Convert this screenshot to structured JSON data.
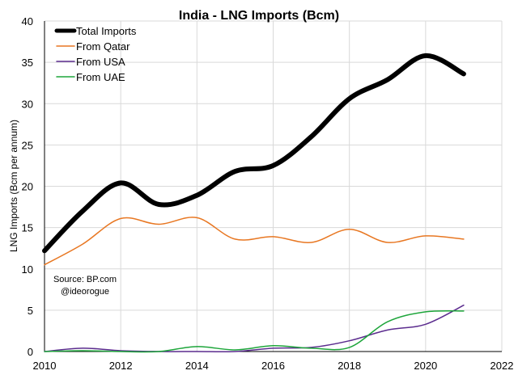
{
  "chart_data": {
    "type": "line",
    "title": "India - LNG Imports (Bcm)",
    "xlabel": "",
    "ylabel": "LNG Imports (Bcm per annum)",
    "xlim": [
      2010,
      2022
    ],
    "ylim": [
      0,
      40
    ],
    "x_ticks": [
      "2010",
      "2012",
      "2014",
      "2016",
      "2018",
      "2020",
      "2022"
    ],
    "y_ticks": [
      "0",
      "5",
      "10",
      "15",
      "20",
      "25",
      "30",
      "35",
      "40"
    ],
    "grid": true,
    "legend_position": "top-left",
    "x": [
      2010,
      2011,
      2012,
      2013,
      2014,
      2015,
      2016,
      2017,
      2018,
      2019,
      2020,
      2021
    ],
    "series": [
      {
        "name": "Total Imports",
        "color": "#000000",
        "values": [
          12.2,
          17.0,
          20.4,
          17.8,
          18.9,
          21.8,
          22.5,
          26.0,
          30.6,
          32.9,
          35.8,
          33.6
        ]
      },
      {
        "name": "From Qatar",
        "color": "#E87722",
        "values": [
          10.5,
          13.0,
          16.1,
          15.4,
          16.2,
          13.6,
          13.9,
          13.2,
          14.8,
          13.2,
          14.0,
          13.6
        ]
      },
      {
        "name": "From USA",
        "color": "#5B2C8E",
        "values": [
          0.0,
          0.4,
          0.1,
          0.0,
          0.0,
          0.0,
          0.4,
          0.5,
          1.3,
          2.6,
          3.3,
          5.6
        ]
      },
      {
        "name": "From UAE",
        "color": "#1DA53A",
        "values": [
          0.0,
          0.1,
          0.0,
          0.0,
          0.6,
          0.2,
          0.7,
          0.4,
          0.5,
          3.6,
          4.8,
          4.9
        ]
      }
    ],
    "annotation": [
      "Source: BP.com",
      "@ideorogue"
    ]
  }
}
